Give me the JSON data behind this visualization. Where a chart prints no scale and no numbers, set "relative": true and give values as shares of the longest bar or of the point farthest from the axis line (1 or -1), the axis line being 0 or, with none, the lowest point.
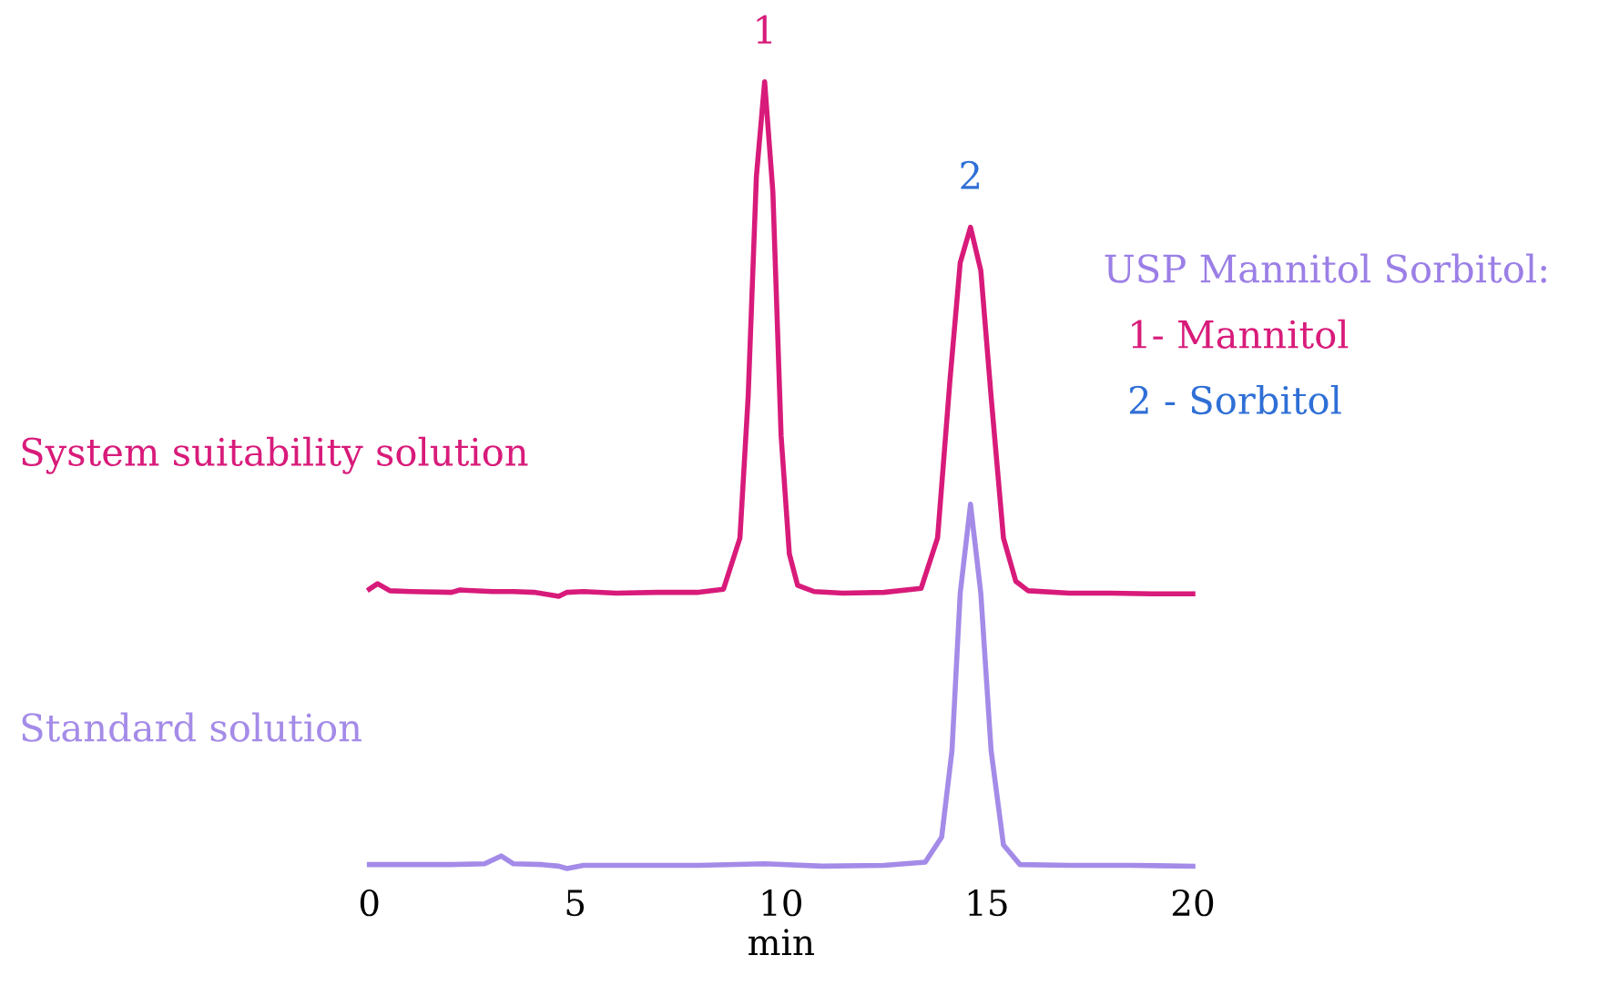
{
  "chart_data": {
    "type": "line",
    "relative": true,
    "xlabel": "min",
    "xlim": [
      0,
      20
    ],
    "xticks": [
      0,
      5,
      10,
      15,
      20
    ],
    "tick_labels": "x",
    "grid": false,
    "legend": false,
    "series": [
      {
        "name": "System suitability solution",
        "color": "#d81b7a",
        "x": [
          0,
          0.2,
          0.5,
          1,
          2,
          2.2,
          3,
          3.5,
          4,
          4.6,
          4.8,
          5.2,
          6,
          7,
          8,
          8.6,
          9.0,
          9.2,
          9.4,
          9.6,
          9.8,
          10.0,
          10.2,
          10.4,
          10.8,
          11.5,
          12.5,
          13.4,
          13.8,
          14.1,
          14.35,
          14.6,
          14.85,
          15.1,
          15.4,
          15.7,
          16,
          17,
          18,
          19,
          20
        ],
        "values": [
          0.355,
          0.362,
          0.353,
          0.352,
          0.351,
          0.354,
          0.352,
          0.352,
          0.351,
          0.346,
          0.351,
          0.352,
          0.35,
          0.351,
          0.351,
          0.355,
          0.42,
          0.6,
          0.88,
          1.0,
          0.86,
          0.55,
          0.4,
          0.36,
          0.352,
          0.35,
          0.351,
          0.356,
          0.42,
          0.62,
          0.77,
          0.815,
          0.76,
          0.6,
          0.42,
          0.365,
          0.353,
          0.35,
          0.35,
          0.349,
          0.349
        ]
      },
      {
        "name": "Standard solution",
        "color": "#a48be8",
        "x": [
          0,
          1,
          2,
          2.8,
          3.2,
          3.5,
          4.2,
          4.6,
          4.8,
          5.2,
          6,
          8,
          9.6,
          11,
          12.5,
          13.5,
          13.9,
          14.15,
          14.35,
          14.6,
          14.85,
          15.1,
          15.4,
          15.8,
          17,
          18.5,
          20
        ],
        "values": [
          0.005,
          0.005,
          0.005,
          0.006,
          0.016,
          0.006,
          0.005,
          0.003,
          0.0,
          0.004,
          0.004,
          0.004,
          0.006,
          0.003,
          0.004,
          0.008,
          0.04,
          0.15,
          0.35,
          0.463,
          0.35,
          0.15,
          0.03,
          0.005,
          0.004,
          0.004,
          0.003
        ]
      }
    ],
    "annotations": [
      {
        "text": "1",
        "x": 9.6,
        "y": 1.0
      },
      {
        "text": "2",
        "x": 14.6,
        "y": 0.815
      },
      "USP Mannitol Sorbitol:",
      "  1- Mannitol",
      "  2 - Sorbitol"
    ]
  }
}
